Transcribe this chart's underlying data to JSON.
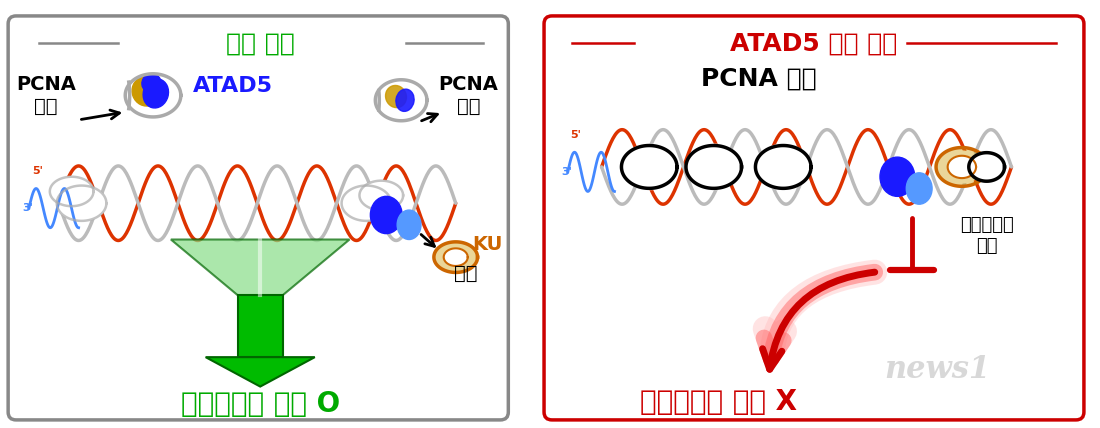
{
  "fig_width": 11.0,
  "fig_height": 4.28,
  "bg_color": "#ffffff",
  "left_panel": {
    "title": "정상 세포",
    "title_color": "#00aa00",
    "box_color": "#888888",
    "pcna_left_label": "PCNA\n분리",
    "pcna_right_label": "PCNA\n분리",
    "atad5_label": "ATAD5",
    "atad5_color": "#1a1aff",
    "ku_label": "KU",
    "ku_label2": "제거",
    "ku_color": "#cc6600",
    "arrow_bottom_label": "상동재조합 복구 O",
    "arrow_bottom_color": "#00aa00"
  },
  "right_panel": {
    "title": "ATAD5 결핍 세포",
    "title_color": "#cc0000",
    "box_color": "#cc0000",
    "pcna_accum_label": "PCNA 축적",
    "block_label": "단거리절제\n방해",
    "block_color": "#000000",
    "arrow_bottom_label": "상동재조합 복구 X",
    "arrow_bottom_color": "#cc0000"
  },
  "dna_red": "#dd3300",
  "dna_blue": "#4488ff",
  "dna_gray": "#bbbbbb",
  "pcna_gray": "#aaaaaa",
  "pcna_navy": "#1a1aff",
  "pcna_gold": "#cc9900",
  "ku_brown": "#cc6600",
  "watermark_color": "#c8c8c8"
}
